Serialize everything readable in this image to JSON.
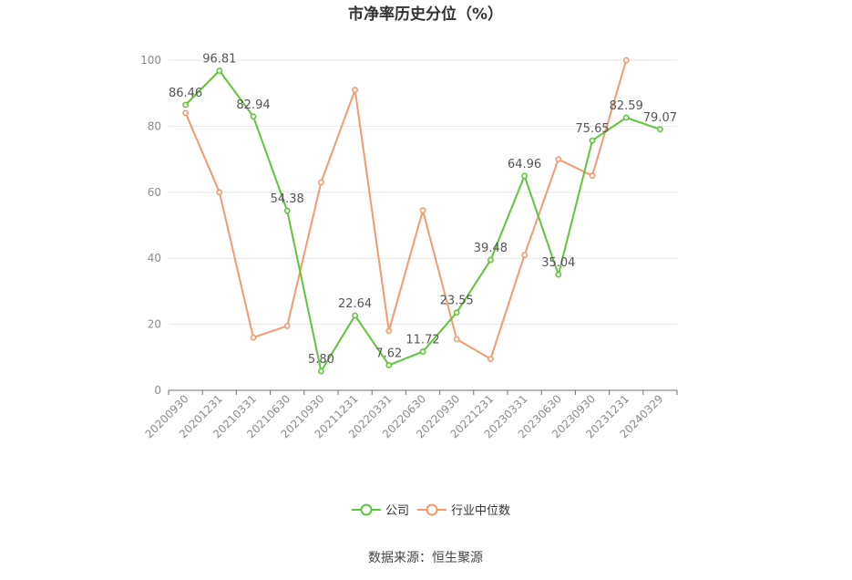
{
  "chart_data": {
    "type": "line",
    "title": "市净率历史分位（%）",
    "xlabel": "",
    "ylabel": "",
    "ylim": [
      0,
      100
    ],
    "yticks": [
      0,
      20,
      40,
      60,
      80,
      100
    ],
    "grid": true,
    "legend_position": "bottom",
    "categories": [
      "20200930",
      "20201231",
      "20210331",
      "20210630",
      "20210930",
      "20211231",
      "20220331",
      "20220630",
      "20220930",
      "20221231",
      "20230331",
      "20230630",
      "20230930",
      "20231231",
      "20240329"
    ],
    "series": [
      {
        "name": "公司",
        "color": "#5fc639",
        "show_labels": true,
        "values": [
          86.46,
          96.81,
          82.94,
          54.38,
          5.8,
          22.64,
          7.62,
          11.72,
          23.55,
          39.48,
          64.96,
          35.04,
          75.65,
          82.59,
          79.07
        ],
        "labels": [
          "86.46",
          "96.81",
          "82.94",
          "54.38",
          "5.80",
          "22.64",
          "7.62",
          "11.72",
          "23.55",
          "39.48",
          "64.96",
          "35.04",
          "75.65",
          "82.59",
          "79.07"
        ]
      },
      {
        "name": "行业中位数",
        "color": "#f59a6e",
        "show_labels": false,
        "values": [
          84,
          60,
          16,
          19.5,
          63,
          91,
          18,
          54.5,
          15.5,
          9.5,
          41,
          70,
          65,
          100,
          null
        ]
      }
    ],
    "source": "数据来源：恒生聚源"
  }
}
